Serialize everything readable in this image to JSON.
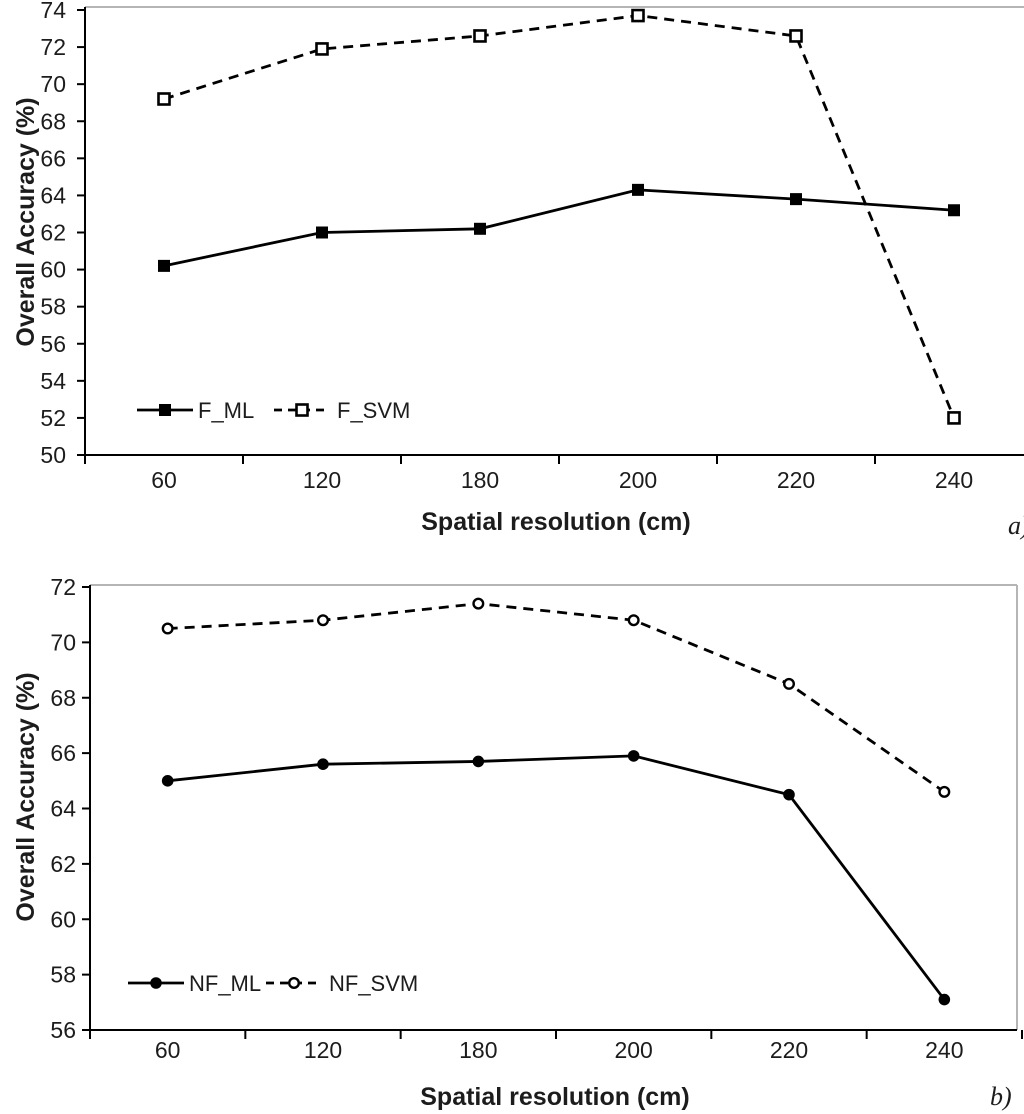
{
  "colors": {
    "line": "#000000",
    "text": "#1c1c1c",
    "plot_border": "#b5b5b5",
    "background": "#ffffff",
    "marker_fill": "#000000",
    "marker_open_fill": "#ffffff"
  },
  "chart_data": [
    {
      "id": "a",
      "type": "line",
      "panel_label": "a)",
      "xlabel": "Spatial resolution (cm)",
      "ylabel": "Overall Accuracy (%)",
      "categories": [
        "60",
        "120",
        "180",
        "200",
        "220",
        "240"
      ],
      "ylim": [
        50,
        74
      ],
      "ytick_step": 2,
      "ytick_labels": [
        "50",
        "52",
        "54",
        "56",
        "58",
        "60",
        "62",
        "64",
        "66",
        "68",
        "70",
        "72",
        "74"
      ],
      "grid": false,
      "legend_position": "inside-bottom-left",
      "series": [
        {
          "name": "F_ML",
          "values": [
            60.2,
            62.0,
            62.2,
            64.3,
            63.8,
            63.2
          ],
          "line_style": "solid",
          "marker": "square",
          "marker_fill": "filled"
        },
        {
          "name": "F_SVM",
          "values": [
            69.2,
            71.9,
            72.6,
            73.7,
            72.6,
            52.0
          ],
          "line_style": "dashed",
          "marker": "square",
          "marker_fill": "open"
        }
      ]
    },
    {
      "id": "b",
      "type": "line",
      "panel_label": "b)",
      "xlabel": "Spatial resolution (cm)",
      "ylabel": "Overall Accuracy (%)",
      "categories": [
        "60",
        "120",
        "180",
        "200",
        "220",
        "240"
      ],
      "ylim": [
        56,
        72
      ],
      "ytick_step": 2,
      "ytick_labels": [
        "56",
        "58",
        "60",
        "62",
        "64",
        "66",
        "68",
        "70",
        "72"
      ],
      "grid": false,
      "legend_position": "inside-bottom-left",
      "series": [
        {
          "name": "NF_ML",
          "values": [
            65.0,
            65.6,
            65.7,
            65.9,
            64.5,
            57.1
          ],
          "line_style": "solid",
          "marker": "circle",
          "marker_fill": "filled"
        },
        {
          "name": "NF_SVM",
          "values": [
            70.5,
            70.8,
            71.4,
            70.8,
            68.5,
            64.6
          ],
          "line_style": "dashed",
          "marker": "circle",
          "marker_fill": "open"
        }
      ]
    }
  ]
}
